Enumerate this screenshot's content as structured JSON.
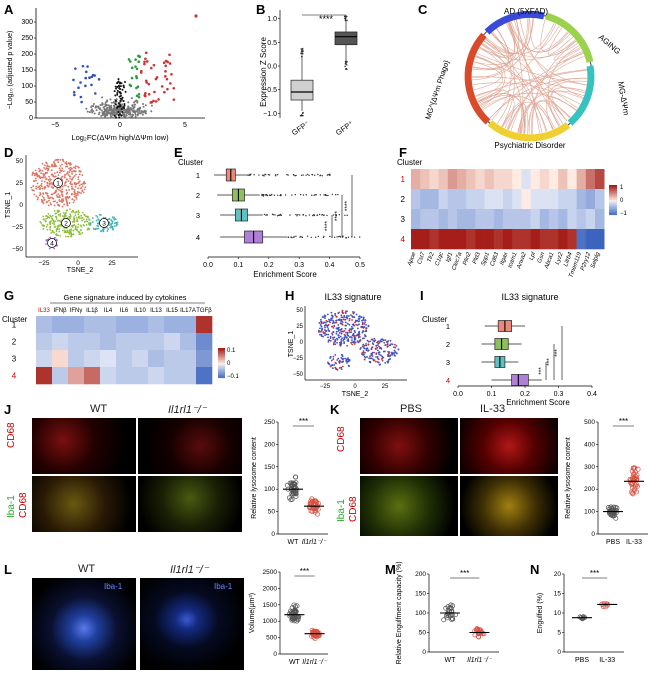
{
  "panels": {
    "A": {
      "letter": "A",
      "xlabel": "Log₂FC(ΔΨm high/ΔΨm low)",
      "ylabel": "−Log₁₀ (adjusted p value)",
      "yticks": [
        "0",
        "50",
        "100",
        "150",
        "200",
        "250",
        "300"
      ],
      "xticks": [
        "−5",
        "0",
        "5"
      ]
    },
    "B": {
      "letter": "B",
      "ylabel": "Expression Z Score",
      "categories": [
        "GFP⁻",
        "GFP⁺"
      ],
      "sig": "****",
      "yticks": [
        "1.0",
        "0.5",
        "0.0",
        "−0.5",
        "−1.0"
      ]
    },
    "C": {
      "letter": "C",
      "labels": {
        "ad": "AD (5XFAD)",
        "aging": "AGING",
        "mgdhh": "MG-ΔΨm",
        "psy": "Psychiatric Disorder",
        "mgphago": "MG^{ΔΨm Phago}"
      }
    },
    "D": {
      "letter": "D",
      "xlabel": "TSNE_2",
      "ylabel": "TSNE_1",
      "clusters": [
        "1",
        "2",
        "3",
        "4"
      ],
      "xticks": [
        "−25",
        "0",
        "25"
      ],
      "yticks": [
        "50",
        "25",
        "0",
        "−25",
        "−50"
      ]
    },
    "E": {
      "letter": "E",
      "title": "Cluster",
      "xlabel": "Enrichment Score",
      "clusters": [
        "1",
        "2",
        "3",
        "4"
      ],
      "xticks": [
        "0.0",
        "0.1",
        "0.2",
        "0.3",
        "0.4",
        "0.5"
      ],
      "sig": [
        "****",
        "****",
        "****"
      ]
    },
    "F": {
      "letter": "F",
      "title": "Cluster",
      "clusters": [
        "1",
        "2",
        "3",
        "4"
      ],
      "genes": [
        "Apoe",
        "Cst7",
        "Tlr2",
        "C1qc",
        "Igf1",
        "Clec7a",
        "Plin2",
        "Pld3",
        "Spp1",
        "Cd63",
        "Itgax",
        "Icam1",
        "Anxa2",
        "Lpl",
        "Gsn",
        "Abca1",
        "Lyz2",
        "Lilrb4",
        "Tmem119",
        "P2ry12",
        "Selplg"
      ],
      "scale": {
        "hi": "1",
        "mid": "0",
        "lo": "−1"
      }
    },
    "G": {
      "letter": "G",
      "header": "Gene signature induced by cytokines",
      "title": "Cluster",
      "clusters": [
        "1",
        "2",
        "3",
        "4"
      ],
      "cytokines": [
        "IL33",
        "IFNβ",
        "IFNγ",
        "IL1β",
        "IL4",
        "IL6",
        "IL10",
        "IL13",
        "IL15",
        "IL17A",
        "TGFβ"
      ],
      "scale": {
        "hi": "0.1",
        "mid": "0",
        "lo": "−0.1"
      }
    },
    "H": {
      "letter": "H",
      "title": "IL33 signature",
      "xlabel": "TSNE_2",
      "ylabel": "TSNE_1",
      "xticks": [
        "−25",
        "0",
        "25"
      ],
      "yticks": [
        "50",
        "25",
        "0",
        "−25",
        "−50"
      ]
    },
    "I": {
      "letter": "I",
      "title": "IL33 signature",
      "ctitle": "Cluster",
      "xlabel": "Enrichment Score",
      "clusters": [
        "1",
        "2",
        "3",
        "4"
      ],
      "xticks": [
        "0.0",
        "0.1",
        "0.2",
        "0.3",
        "0.4"
      ],
      "sig": [
        "***",
        "***",
        "***"
      ]
    },
    "J": {
      "letter": "J",
      "col1": "WT",
      "col2": "Il1rl1⁻/⁻",
      "row1": "CD68",
      "row2a": "Iba-1",
      "row2b": "CD68",
      "ylabel": "Relative lysosome content",
      "xcats": [
        "WT",
        "Il1rl1⁻/⁻"
      ],
      "sig": "***",
      "yticks": [
        "250",
        "200",
        "150",
        "100",
        "50",
        "0"
      ]
    },
    "K": {
      "letter": "K",
      "col1": "PBS",
      "col2": "IL-33",
      "row1": "CD68",
      "row2a": "Iba-1",
      "row2b": "CD68",
      "ylabel": "Relative lysosome content",
      "xcats": [
        "PBS",
        "IL-33"
      ],
      "sig": "***",
      "yticks": [
        "500",
        "400",
        "300",
        "200",
        "100",
        "0"
      ]
    },
    "L": {
      "letter": "L",
      "col1": "WT",
      "col2": "Il1rl1⁻/⁻",
      "tag": "Iba-1",
      "ylabel": "Volume(μm³)",
      "xcats": [
        "WT",
        "Il1rl1⁻/⁻"
      ],
      "sig": "***",
      "yticks": [
        "2500",
        "2000",
        "1500",
        "1000",
        "500",
        "0"
      ]
    },
    "M": {
      "letter": "M",
      "ylabel": "Relative Engulfment capacity (%)",
      "xcats": [
        "WT",
        "Il1rl1⁻/⁻"
      ],
      "sig": "***",
      "yticks": [
        "200",
        "150",
        "100",
        "50",
        "0"
      ]
    },
    "N": {
      "letter": "N",
      "ylabel": "Engulfed (%)",
      "xcats": [
        "PBS",
        "IL-33"
      ],
      "sig": "***",
      "yticks": [
        "20",
        "15",
        "10",
        "5",
        "0"
      ]
    }
  },
  "chart_data": [
    {
      "type": "box",
      "panel": "B",
      "categories": [
        "GFP⁻",
        "GFP⁺"
      ],
      "ylabel": "Expression Z Score",
      "ylim": [
        -1.1,
        1.1
      ],
      "boxes": [
        {
          "q1": -0.72,
          "median": -0.55,
          "q3": -0.3,
          "whislo": -0.95,
          "whishi": 0.2
        },
        {
          "q1": 0.45,
          "median": 0.62,
          "q3": 0.72,
          "whislo": 0.1,
          "whishi": 0.95
        }
      ]
    },
    {
      "type": "box",
      "panel": "E",
      "categories": [
        "1",
        "2",
        "3",
        "4"
      ],
      "xlabel": "Enrichment Score",
      "xlim": [
        0,
        0.5
      ],
      "boxes": [
        {
          "q1": 0.06,
          "median": 0.075,
          "q3": 0.09,
          "whislo": 0.02,
          "whishi": 0.13
        },
        {
          "q1": 0.08,
          "median": 0.1,
          "q3": 0.12,
          "whislo": 0.03,
          "whishi": 0.17
        },
        {
          "q1": 0.09,
          "median": 0.11,
          "q3": 0.13,
          "whislo": 0.04,
          "whishi": 0.18
        },
        {
          "q1": 0.12,
          "median": 0.15,
          "q3": 0.18,
          "whislo": 0.04,
          "whishi": 0.26
        }
      ],
      "colors": [
        "#e8897a",
        "#8fbf5a",
        "#5fc1c1",
        "#b07fd6"
      ]
    },
    {
      "type": "box",
      "panel": "I",
      "categories": [
        "1",
        "2",
        "3",
        "4"
      ],
      "xlabel": "Enrichment Score",
      "xlim": [
        0,
        0.4
      ],
      "boxes": [
        {
          "q1": 0.12,
          "median": 0.14,
          "q3": 0.16,
          "whislo": 0.08,
          "whishi": 0.2
        },
        {
          "q1": 0.11,
          "median": 0.13,
          "q3": 0.15,
          "whislo": 0.07,
          "whishi": 0.19
        },
        {
          "q1": 0.11,
          "median": 0.125,
          "q3": 0.14,
          "whislo": 0.07,
          "whishi": 0.18
        },
        {
          "q1": 0.16,
          "median": 0.18,
          "q3": 0.21,
          "whislo": 0.1,
          "whishi": 0.25
        }
      ],
      "colors": [
        "#e8897a",
        "#8fbf5a",
        "#5fc1c1",
        "#b07fd6"
      ]
    },
    {
      "type": "heatmap",
      "panel": "F",
      "rows": [
        "1",
        "2",
        "3",
        "4"
      ],
      "values": [
        [
          0.3,
          0.2,
          0.1,
          0.2,
          0.4,
          0.3,
          0.2,
          0.1,
          0.2,
          0.1,
          0.1,
          0.0,
          -0.1,
          0.0,
          0.1,
          0.0,
          0.2,
          0.0,
          0.3,
          0.6,
          0.8
        ],
        [
          -0.3,
          -0.4,
          -0.4,
          -0.2,
          -0.3,
          -0.3,
          -0.2,
          -0.2,
          -0.1,
          -0.1,
          -0.2,
          -0.1,
          0.0,
          -0.1,
          -0.1,
          -0.1,
          -0.2,
          -0.2,
          -0.4,
          -0.5,
          -0.3
        ],
        [
          -0.4,
          -0.3,
          -0.3,
          -0.4,
          -0.3,
          -0.4,
          -0.4,
          -0.3,
          -0.3,
          -0.4,
          -0.3,
          -0.3,
          -0.3,
          -0.2,
          -0.4,
          -0.3,
          -0.4,
          -0.2,
          -0.3,
          -0.2,
          -0.4
        ],
        [
          1.0,
          1.0,
          0.9,
          1.0,
          1.0,
          1.0,
          0.9,
          1.0,
          1.0,
          0.9,
          1.0,
          0.9,
          0.9,
          1.0,
          0.9,
          0.9,
          1.0,
          0.9,
          -0.9,
          -1.0,
          -1.0
        ]
      ]
    },
    {
      "type": "heatmap",
      "panel": "G",
      "rows": [
        "1",
        "2",
        "3",
        "4"
      ],
      "values": [
        [
          -0.04,
          -0.05,
          -0.05,
          -0.04,
          -0.04,
          -0.05,
          -0.05,
          -0.04,
          -0.05,
          -0.05,
          0.1
        ],
        [
          -0.03,
          -0.02,
          -0.03,
          -0.03,
          -0.04,
          -0.03,
          -0.03,
          -0.03,
          -0.02,
          -0.04,
          -0.08
        ],
        [
          -0.02,
          0.01,
          -0.03,
          -0.02,
          -0.01,
          -0.03,
          -0.02,
          -0.04,
          -0.03,
          -0.03,
          -0.07
        ],
        [
          0.1,
          -0.03,
          0.04,
          0.07,
          -0.02,
          -0.03,
          -0.03,
          -0.02,
          -0.03,
          -0.03,
          -0.1
        ]
      ]
    },
    {
      "type": "scatter",
      "panel": "J",
      "categories": [
        "WT",
        "Il1rl1⁻/⁻"
      ],
      "means": [
        100,
        62
      ],
      "ylim": [
        0,
        250
      ]
    },
    {
      "type": "scatter",
      "panel": "K",
      "categories": [
        "PBS",
        "IL-33"
      ],
      "means": [
        100,
        235
      ],
      "ylim": [
        0,
        500
      ]
    },
    {
      "type": "scatter",
      "panel": "L",
      "categories": [
        "WT",
        "Il1rl1⁻/⁻"
      ],
      "means": [
        1200,
        620
      ],
      "ylim": [
        0,
        2500
      ]
    },
    {
      "type": "scatter",
      "panel": "M",
      "categories": [
        "WT",
        "Il1rl1⁻/⁻"
      ],
      "means": [
        100,
        50
      ],
      "ylim": [
        0,
        200
      ]
    },
    {
      "type": "scatter",
      "panel": "N",
      "categories": [
        "PBS",
        "IL-33"
      ],
      "means": [
        8.8,
        12.2
      ],
      "ylim": [
        0,
        20
      ]
    }
  ]
}
